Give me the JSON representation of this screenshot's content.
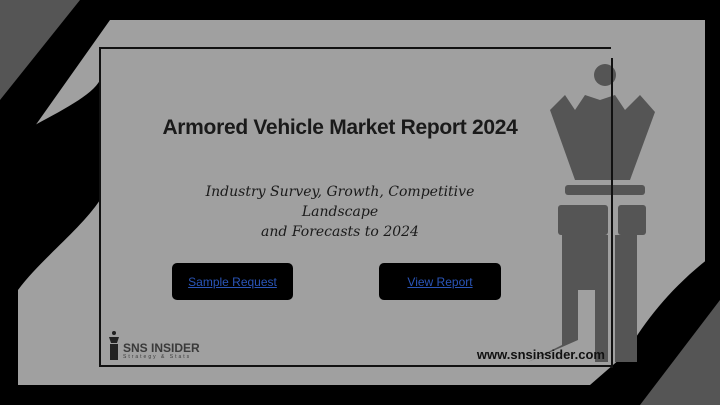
{
  "title": "Armored Vehicle Market Report 2024",
  "subtitle_lines": [
    "Industry Survey, Growth, Competitive",
    "Landscape",
    "and Forecasts to 2024"
  ],
  "buttons": {
    "sample_request": "Sample Request",
    "view_report": "View Report"
  },
  "logo": {
    "name": "SNS INSIDER",
    "tagline": "Strategy & Stats",
    "icon": "chess-rook-icon"
  },
  "url": "www.snsinsider.com",
  "colors": {
    "panel": "#a0a0a0",
    "dark": "#555555",
    "background": "#000000",
    "link": "#2a55b8"
  }
}
